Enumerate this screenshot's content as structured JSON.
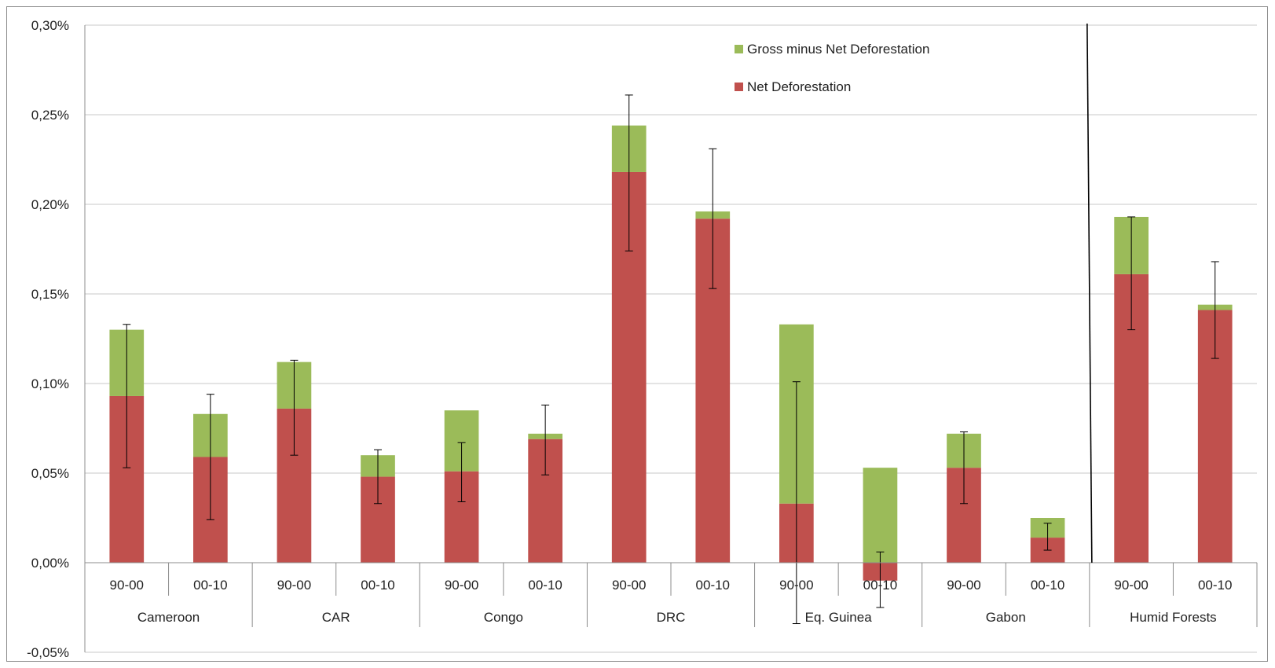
{
  "chart_data": {
    "type": "bar",
    "stacked": true,
    "title": "",
    "xlabel": "",
    "ylabel": "",
    "ylim": [
      -0.0005,
      0.003
    ],
    "y_ticks": [
      {
        "value": -0.0005,
        "label": "-0,05%"
      },
      {
        "value": 0.0,
        "label": "0,00%"
      },
      {
        "value": 0.0005,
        "label": "0,05%"
      },
      {
        "value": 0.001,
        "label": "0,10%"
      },
      {
        "value": 0.0015,
        "label": "0,15%"
      },
      {
        "value": 0.002,
        "label": "0,20%"
      },
      {
        "value": 0.0025,
        "label": "0,25%"
      },
      {
        "value": 0.003,
        "label": "0,30%"
      }
    ],
    "grid": true,
    "legend_position": "top-right",
    "groups": [
      "Cameroon",
      "CAR",
      "Congo",
      "DRC",
      "Eq. Guinea",
      "Gabon",
      "Humid Forests"
    ],
    "periods": [
      "90-00",
      "00-10"
    ],
    "series": [
      {
        "name": "Net Deforestation",
        "color": "#c0504d",
        "values": [
          0.00093,
          0.00059,
          0.00086,
          0.00048,
          0.00051,
          0.00069,
          0.00218,
          0.00192,
          0.00033,
          -0.0001,
          0.00053,
          0.00014,
          0.00161,
          0.00141
        ]
      },
      {
        "name": "Gross minus Net Deforestation",
        "color": "#9bbb59",
        "values": [
          0.00037,
          0.00024,
          0.00026,
          0.00012,
          0.00034,
          3e-05,
          0.00026,
          4e-05,
          0.001,
          0.00053,
          0.00019,
          0.00011,
          0.00032,
          3e-05
        ]
      }
    ],
    "error_bars": [
      [
        0.00053,
        0.00133
      ],
      [
        0.00024,
        0.00094
      ],
      [
        0.0006,
        0.00113
      ],
      [
        0.00033,
        0.00063
      ],
      [
        0.00034,
        0.00067
      ],
      [
        0.00049,
        0.00088
      ],
      [
        0.00174,
        0.00261
      ],
      [
        0.00153,
        0.00231
      ],
      [
        -0.00034,
        0.00101
      ],
      [
        -0.00025,
        6e-05
      ],
      [
        0.00033,
        0.00073
      ],
      [
        7e-05,
        0.00022
      ],
      [
        0.0013,
        0.00193
      ],
      [
        0.00114,
        0.00168
      ]
    ],
    "separator_after_group": "Gabon"
  }
}
